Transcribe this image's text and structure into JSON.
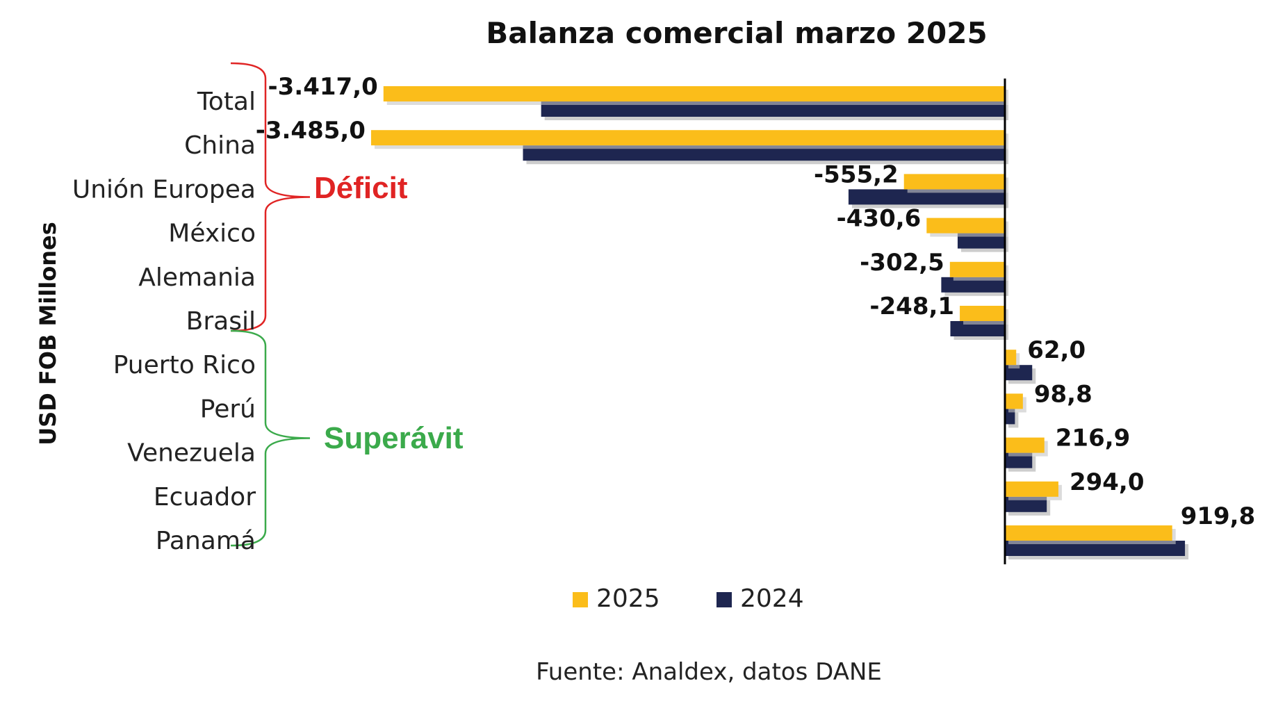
{
  "chart_data": {
    "type": "bar",
    "orientation": "horizontal",
    "title": "Balanza comercial marzo 2025",
    "ylabel": "USD FOB Millones",
    "categories": [
      "Total",
      "China",
      "Unión Europea",
      "México",
      "Alemania",
      "Brasil",
      "Puerto Rico",
      "Perú",
      "Venezuela",
      "Ecuador",
      "Panamá"
    ],
    "series": [
      {
        "name": "2025",
        "color": "#FBBD1A",
        "values": [
          -3417.0,
          -3485.0,
          -555.2,
          -430.6,
          -302.5,
          -248.1,
          62.0,
          98.8,
          216.9,
          294.0,
          919.8
        ],
        "data_labels": [
          "-3.417,0",
          "-3.485,0",
          "-555,2",
          "-430,6",
          "-302,5",
          "-248,1",
          "62,0",
          "98,8",
          "216,9",
          "294,0",
          "919,8"
        ]
      },
      {
        "name": "2024",
        "color": "#1E2650",
        "values": [
          -2550,
          -2650,
          -860,
          -260,
          -350,
          -300,
          150,
          55,
          150,
          230,
          990
        ]
      }
    ],
    "xlim": [
      -3600,
      1100
    ],
    "grid": false,
    "legend_position": "bottom",
    "annotations": [
      {
        "text": "Déficit",
        "color": "#E02424",
        "bracket_from": "Total",
        "bracket_to": "Brasil"
      },
      {
        "text": "Superávit",
        "color": "#3BAA4B",
        "bracket_from": "Brasil",
        "bracket_to": "Panamá"
      }
    ],
    "source": "Fuente: Analdex, datos DANE"
  }
}
